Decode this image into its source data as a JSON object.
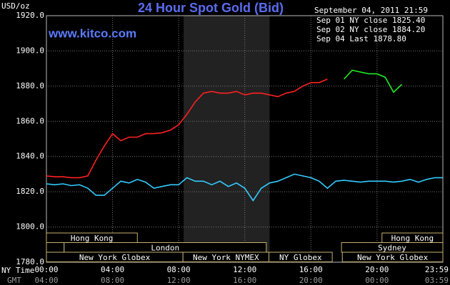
{
  "chart_data": {
    "type": "line",
    "title": "24 Hour Spot Gold (Bid)",
    "y_label": "USD/oz",
    "watermark": "www.kitco.com",
    "legend_title": "September 04, 2011 21:59",
    "x_row_label": "NY Time",
    "gmt_row_label": "GMT",
    "xlim": [
      0,
      23.983
    ],
    "xticks": [
      {
        "value": 0,
        "label": "00:00"
      },
      {
        "value": 4,
        "label": "04:00"
      },
      {
        "value": 8,
        "label": "08:00"
      },
      {
        "value": 12,
        "label": "12:00"
      },
      {
        "value": 16,
        "label": "16:00"
      },
      {
        "value": 20,
        "label": "20:00"
      },
      {
        "value": 23.983,
        "label": "23:59"
      }
    ],
    "gmt_ticks": [
      "04:00",
      "08:00",
      "12:00",
      "16:00",
      "20:00",
      "00:00",
      "03:59"
    ],
    "ylim": [
      1780,
      1920
    ],
    "yticks": [
      {
        "value": 1780,
        "label": "1780.0"
      },
      {
        "value": 1800,
        "label": "1800.0"
      },
      {
        "value": 1820,
        "label": "1820.0"
      },
      {
        "value": 1840,
        "label": "1840.0"
      },
      {
        "value": 1860,
        "label": "1860.0"
      },
      {
        "value": 1880,
        "label": "1880.0"
      },
      {
        "value": 1900,
        "label": "1900.0"
      },
      {
        "value": 1920,
        "label": "1920.0"
      }
    ],
    "grid": true,
    "highlight": [
      8.3,
      13.5
    ],
    "session_rows": [
      [
        {
          "label": "Hong Kong",
          "start": 0,
          "end": 5.5
        },
        {
          "label": "Hong Kong",
          "start": 20.3,
          "end": 23.983
        }
      ],
      [
        {
          "label": null,
          "start": 0,
          "end": 1.07
        },
        {
          "label": "London",
          "start": 1.07,
          "end": 13.3
        },
        {
          "label": "Sydney",
          "start": 17.85,
          "end": 23.983
        }
      ],
      [
        {
          "label": "New York Globex",
          "start": 0,
          "end": 8.26
        },
        {
          "label": "New York NYMEX",
          "start": 8.26,
          "end": 13.46
        },
        {
          "label": "NY Globex",
          "start": 13.46,
          "end": 17.29
        },
        {
          "label": "New York Globex",
          "start": 17.9,
          "end": 23.983
        }
      ]
    ],
    "x": [
      0,
      0.5,
      1,
      1.5,
      2,
      2.5,
      3,
      3.5,
      4,
      4.5,
      5,
      5.5,
      6,
      6.5,
      7,
      7.5,
      8,
      8.5,
      9,
      9.5,
      10,
      10.5,
      11,
      11.5,
      12,
      12.5,
      13,
      13.5,
      14,
      14.5,
      15,
      15.5,
      16,
      16.5,
      17,
      17.5,
      18,
      18.5,
      19,
      19.5,
      20,
      20.5,
      21,
      21.5,
      22,
      22.5,
      23,
      23.5,
      23.983
    ],
    "series": [
      {
        "name": "Sep 01 NY close 1825.40",
        "color": "#33ccff",
        "values": [
          1824.5,
          1824,
          1824.5,
          1823.5,
          1824,
          1822,
          1818,
          1818,
          1822,
          1826,
          1825,
          1827,
          1825.5,
          1822,
          1823,
          1824,
          1824,
          1828,
          1826,
          1826,
          1824,
          1826,
          1823,
          1825,
          1822,
          1815,
          1822,
          1825,
          1826,
          1828,
          1830,
          1829,
          1828,
          1826,
          1822,
          1826,
          1826.5,
          1826,
          1825.5,
          1826,
          1826,
          1826,
          1825.5,
          1826,
          1827,
          1825.5,
          1827,
          1828,
          1828
        ]
      },
      {
        "name": "Sep 02 NY close 1884.20",
        "color": "#ff2020",
        "values": [
          1829,
          1828.5,
          1828.5,
          1828,
          1828,
          1829,
          1838,
          1846,
          1853,
          1849,
          1851,
          1851,
          1853,
          1853,
          1853.5,
          1855,
          1858,
          1864,
          1871,
          1876,
          1877,
          1876,
          1876,
          1877,
          1875,
          1876,
          1876,
          1875,
          1874,
          1876,
          1877,
          1880,
          1882,
          1882,
          1884,
          null,
          null,
          null,
          null,
          null,
          null,
          null,
          null,
          null,
          null,
          null,
          null,
          null,
          null
        ]
      },
      {
        "name": "Sep 04 Last 1878.80",
        "color": "#22ee22",
        "values": [
          null,
          null,
          null,
          null,
          null,
          null,
          null,
          null,
          null,
          null,
          null,
          null,
          null,
          null,
          null,
          null,
          null,
          null,
          null,
          null,
          null,
          null,
          null,
          null,
          null,
          null,
          null,
          null,
          null,
          null,
          null,
          null,
          null,
          null,
          null,
          null,
          1884,
          1889,
          1888,
          1887,
          1887,
          1885,
          1876.5,
          1881,
          null,
          null,
          null,
          null,
          null
        ]
      }
    ]
  }
}
